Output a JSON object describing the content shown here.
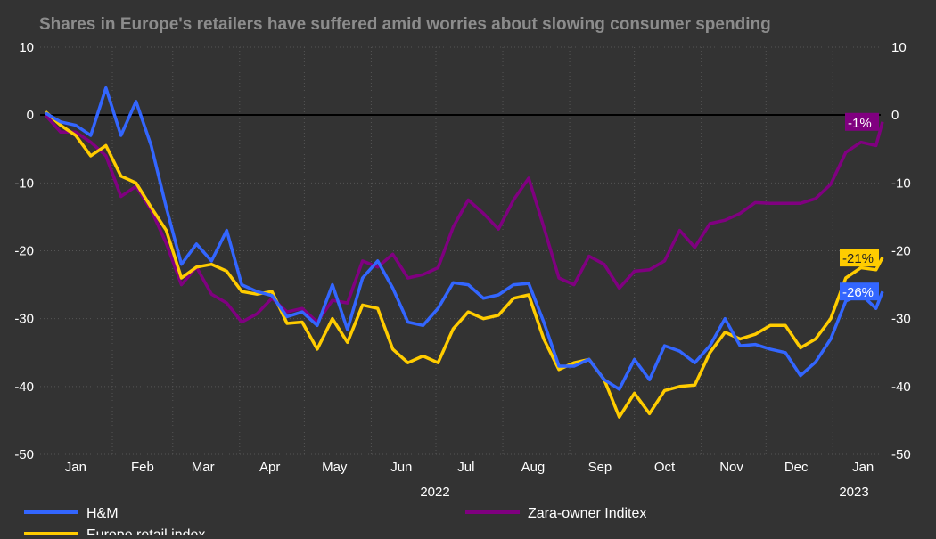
{
  "chart_data": {
    "type": "line",
    "subtitle": "Shares in Europe's retailers have suffered amid worries about slowing consumer spending",
    "x": [
      "2022-01-01",
      "2022-01-08",
      "2022-01-15",
      "2022-01-22",
      "2022-01-29",
      "2022-02-05",
      "2022-02-12",
      "2022-02-19",
      "2022-02-26",
      "2022-03-05",
      "2022-03-12",
      "2022-03-19",
      "2022-03-26",
      "2022-04-02",
      "2022-04-09",
      "2022-04-16",
      "2022-04-23",
      "2022-04-30",
      "2022-05-07",
      "2022-05-14",
      "2022-05-21",
      "2022-05-28",
      "2022-06-04",
      "2022-06-11",
      "2022-06-18",
      "2022-06-25",
      "2022-07-02",
      "2022-07-09",
      "2022-07-16",
      "2022-07-23",
      "2022-07-30",
      "2022-08-06",
      "2022-08-13",
      "2022-08-20",
      "2022-08-27",
      "2022-09-03",
      "2022-09-10",
      "2022-09-17",
      "2022-09-24",
      "2022-10-01",
      "2022-10-08",
      "2022-10-15",
      "2022-10-22",
      "2022-10-29",
      "2022-11-05",
      "2022-11-12",
      "2022-11-19",
      "2022-11-26",
      "2022-12-03",
      "2022-12-10",
      "2022-12-17",
      "2022-12-24",
      "2022-12-31",
      "2023-01-07",
      "2023-01-14",
      "2023-01-21",
      "2023-01-24"
    ],
    "series": [
      {
        "name": "H&M",
        "color": "#3366ff",
        "end_label": "-26%",
        "values": [
          0.3,
          -1,
          -1.5,
          -3,
          4,
          -3,
          2,
          -4.5,
          -13.6,
          -22,
          -19,
          -21.5,
          -17,
          -25,
          -26,
          -26.6,
          -29.7,
          -29,
          -31,
          -25,
          -31.6,
          -24,
          -21.5,
          -25.5,
          -30.5,
          -31,
          -28.5,
          -24.7,
          -25,
          -27,
          -26.5,
          -25,
          -24.8,
          -30.5,
          -37,
          -37,
          -36,
          -39,
          -40.4,
          -36,
          -39,
          -34,
          -34.8,
          -36.5,
          -34,
          -30,
          -34,
          -33.8,
          -34.5,
          -35,
          -38.4,
          -36.4,
          -33,
          -27.4,
          -26.4,
          -28.5,
          -26
        ]
      },
      {
        "name": "Europe retail index",
        "color": "#ffcc00",
        "end_label": "-21%",
        "values": [
          0.5,
          -1.5,
          -3,
          -6,
          -4.5,
          -9,
          -10,
          -13.6,
          -17,
          -24,
          -22.4,
          -22,
          -23,
          -26,
          -26.4,
          -26,
          -30.7,
          -30.5,
          -34.5,
          -30,
          -33.5,
          -28,
          -28.5,
          -34.5,
          -36.5,
          -35.5,
          -36.5,
          -31.5,
          -29,
          -30,
          -29.5,
          -27,
          -26.5,
          -33,
          -37.5,
          -36.5,
          -36,
          -39,
          -44.5,
          -41,
          -44,
          -40.6,
          -40,
          -39.8,
          -35,
          -32,
          -33,
          -32.3,
          -31,
          -31,
          -34.3,
          -33,
          -30,
          -24,
          -22.5,
          -22.8,
          -21
        ]
      },
      {
        "name": "Zara-owner Inditex",
        "color": "#800080",
        "end_label": "-1%",
        "values": [
          0,
          -2.5,
          -2.5,
          -4,
          -6,
          -12,
          -10.5,
          -14,
          -18.9,
          -25,
          -22.4,
          -26.4,
          -27.7,
          -30.5,
          -29.3,
          -27,
          -29,
          -28.5,
          -30.5,
          -27.3,
          -27.7,
          -21.5,
          -22.4,
          -20.5,
          -24,
          -23.5,
          -22.5,
          -16.5,
          -12.5,
          -14.5,
          -16.8,
          -12.5,
          -9.3,
          -16.5,
          -24,
          -25,
          -20.8,
          -22,
          -25.5,
          -23,
          -22.8,
          -21.5,
          -17,
          -19.5,
          -16,
          -15.5,
          -14.5,
          -12.9,
          -13,
          -13,
          -13,
          -12.3,
          -10.2,
          -5.5,
          -4,
          -4.5,
          -1
        ]
      }
    ],
    "ylim": [
      -50,
      10
    ],
    "yticks": [
      "10",
      "0",
      "-10",
      "-20",
      "-30",
      "-40",
      "-50"
    ],
    "xtick_labels": [
      "Jan",
      "Feb",
      "Mar",
      "Apr",
      "May",
      "Jun",
      "Jul",
      "Aug",
      "Sep",
      "Oct",
      "Nov",
      "Dec",
      "Jan"
    ],
    "year_labels": [
      "2022",
      "2023"
    ],
    "grid": true,
    "legend_position": "bottom",
    "background": "#333333"
  }
}
